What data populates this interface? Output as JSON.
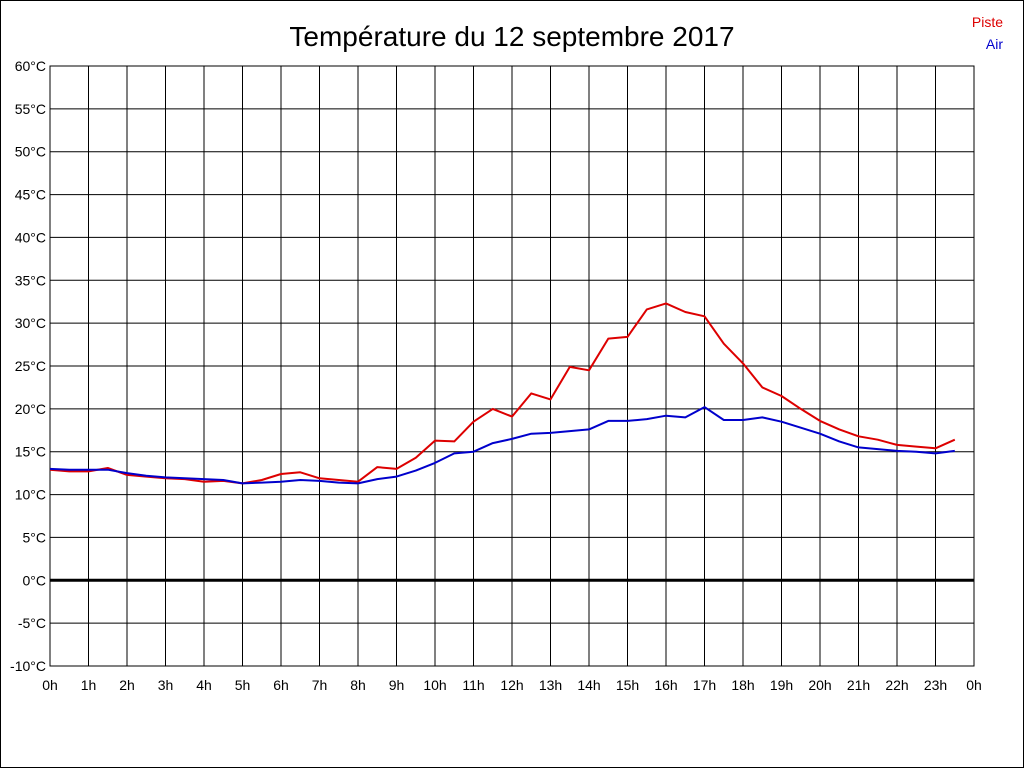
{
  "chart_data": {
    "type": "line",
    "title": "Température du 12 septembre 2017",
    "xlabel": "",
    "ylabel": "",
    "ylim": [
      -10,
      60
    ],
    "y_ticks": [
      "60°C",
      "55°C",
      "50°C",
      "45°C",
      "40°C",
      "35°C",
      "30°C",
      "25°C",
      "20°C",
      "15°C",
      "10°C",
      "5°C",
      "0°C",
      "-5°C",
      "-10°C"
    ],
    "y_tick_values": [
      60,
      55,
      50,
      45,
      40,
      35,
      30,
      25,
      20,
      15,
      10,
      5,
      0,
      -5,
      -10
    ],
    "x_ticks": [
      "0h",
      "1h",
      "2h",
      "3h",
      "4h",
      "5h",
      "6h",
      "7h",
      "8h",
      "9h",
      "10h",
      "11h",
      "12h",
      "13h",
      "14h",
      "15h",
      "16h",
      "17h",
      "18h",
      "19h",
      "20h",
      "21h",
      "22h",
      "23h",
      "0h"
    ],
    "xlim": [
      0,
      24
    ],
    "grid": true,
    "legend": "top-right",
    "zero_line": true,
    "x": [
      0,
      0.5,
      1,
      1.5,
      2,
      2.5,
      3,
      3.5,
      4,
      4.5,
      5,
      5.5,
      6,
      6.5,
      7,
      7.5,
      8,
      8.5,
      9,
      9.5,
      10,
      10.5,
      11,
      11.5,
      12,
      12.5,
      13,
      13.5,
      14,
      14.5,
      15,
      15.5,
      16,
      16.5,
      17,
      17.5,
      18,
      18.5,
      19,
      19.5,
      20,
      20.5,
      21,
      21.5,
      22,
      22.5,
      23,
      23.5
    ],
    "series": [
      {
        "name": "Piste",
        "color": "#dd0000",
        "values": [
          12.9,
          12.7,
          12.7,
          13.1,
          12.3,
          12.1,
          11.9,
          11.8,
          11.5,
          11.6,
          11.3,
          11.7,
          12.4,
          12.6,
          11.9,
          11.7,
          11.5,
          13.2,
          13.0,
          14.3,
          16.3,
          16.2,
          18.5,
          20.0,
          19.1,
          21.8,
          21.1,
          24.9,
          24.5,
          28.2,
          28.4,
          31.6,
          32.3,
          31.3,
          30.8,
          27.6,
          25.3,
          22.5,
          21.5,
          20.0,
          18.6,
          17.6,
          16.8,
          16.4,
          15.8,
          15.6,
          15.4,
          16.4
        ]
      },
      {
        "name": "Air",
        "color": "#0000cc",
        "values": [
          13.0,
          12.9,
          12.9,
          12.9,
          12.5,
          12.2,
          12.0,
          11.9,
          11.8,
          11.7,
          11.3,
          11.4,
          11.5,
          11.7,
          11.6,
          11.4,
          11.3,
          11.8,
          12.1,
          12.8,
          13.7,
          14.8,
          15.0,
          16.0,
          16.5,
          17.1,
          17.2,
          17.4,
          17.6,
          18.6,
          18.6,
          18.8,
          19.2,
          19.0,
          20.2,
          18.7,
          18.7,
          19.0,
          18.5,
          17.8,
          17.1,
          16.2,
          15.5,
          15.3,
          15.1,
          15.0,
          14.8,
          15.1
        ]
      }
    ]
  }
}
